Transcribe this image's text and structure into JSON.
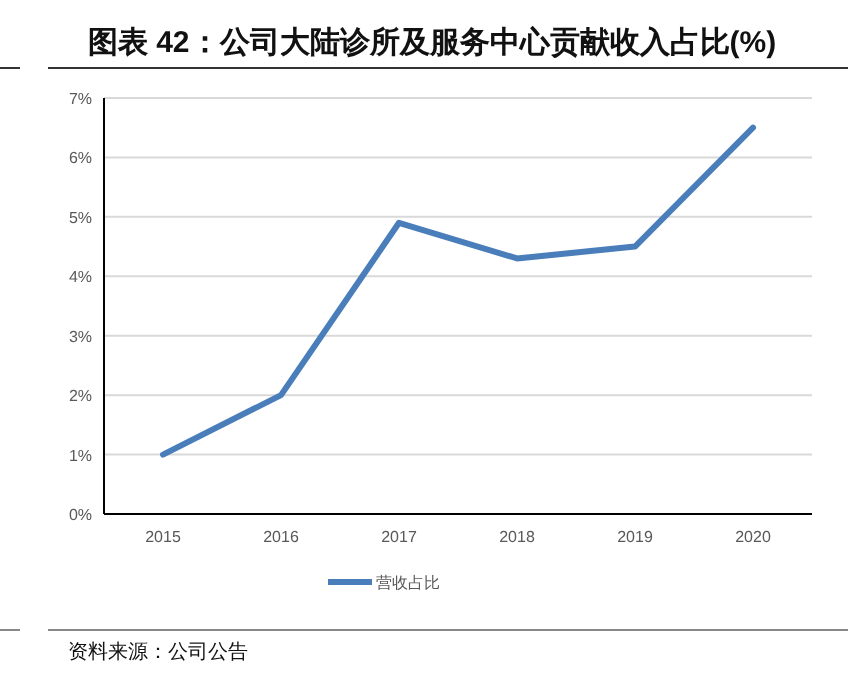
{
  "chart_data": {
    "type": "line",
    "title": "图表 42：公司大陆诊所及服务中心贡献收入占比(%)",
    "categories": [
      "2015",
      "2016",
      "2017",
      "2018",
      "2019",
      "2020"
    ],
    "series": [
      {
        "name": "营收占比",
        "color": "#4a7ebb",
        "values": [
          1.0,
          2.0,
          4.9,
          4.3,
          4.5,
          6.5
        ]
      }
    ],
    "ylim": [
      0,
      7
    ],
    "yticks": [
      {
        "value": 0,
        "label": "0%"
      },
      {
        "value": 1,
        "label": "1%"
      },
      {
        "value": 2,
        "label": "2%"
      },
      {
        "value": 3,
        "label": "3%"
      },
      {
        "value": 4,
        "label": "4%"
      },
      {
        "value": 5,
        "label": "5%"
      },
      {
        "value": 6,
        "label": "6%"
      },
      {
        "value": 7,
        "label": "7%"
      }
    ],
    "grid": "y",
    "legend": "bottom",
    "marker": "none",
    "line_style": "solid",
    "annotations": [
      "资料来源：公司公告"
    ]
  }
}
